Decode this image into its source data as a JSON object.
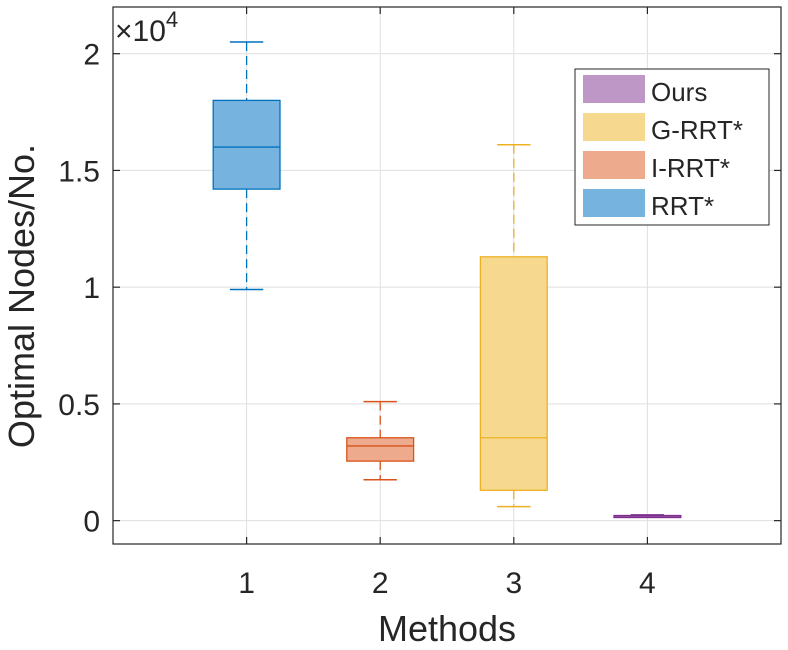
{
  "chart_data": {
    "type": "box",
    "title": "",
    "xlabel": "Methods",
    "ylabel": "Optimal Nodes/No.",
    "y_multiplier": {
      "base": "×10",
      "exponent": "4"
    },
    "ylim": [
      -0.1,
      2.2
    ],
    "xlim": [
      0,
      5
    ],
    "x_ticks": [
      1,
      2,
      3,
      4
    ],
    "x_tick_labels": [
      "1",
      "2",
      "3",
      "4"
    ],
    "y_ticks": [
      0,
      0.5,
      1,
      1.5,
      2
    ],
    "y_tick_labels": [
      "0",
      "0.5",
      "1",
      "1.5",
      "2"
    ],
    "grid": true,
    "legend_position": "top-right",
    "series": [
      {
        "name": "RRT*",
        "x": 1,
        "color": "#0072BD",
        "fill": "#77B3DF",
        "whisker_low": 0.99,
        "q1": 1.42,
        "median": 1.6,
        "q3": 1.8,
        "whisker_high": 2.05
      },
      {
        "name": "I-RRT*",
        "x": 2,
        "color": "#D95319",
        "fill": "#EEAA8C",
        "whisker_low": 0.175,
        "q1": 0.255,
        "median": 0.32,
        "q3": 0.355,
        "whisker_high": 0.51
      },
      {
        "name": "G-RRT*",
        "x": 3,
        "color": "#EDB120",
        "fill": "#F6D88F",
        "whisker_low": 0.06,
        "q1": 0.13,
        "median": 0.355,
        "q3": 1.13,
        "whisker_high": 1.61
      },
      {
        "name": "Ours",
        "x": 4,
        "color": "#7E2F8E",
        "fill": "#BE97C6",
        "whisker_low": 0.015,
        "q1": 0.018,
        "median": 0.02,
        "q3": 0.022,
        "whisker_high": 0.025
      }
    ],
    "legend_order": [
      "Ours",
      "G-RRT*",
      "I-RRT*",
      "RRT*"
    ]
  }
}
